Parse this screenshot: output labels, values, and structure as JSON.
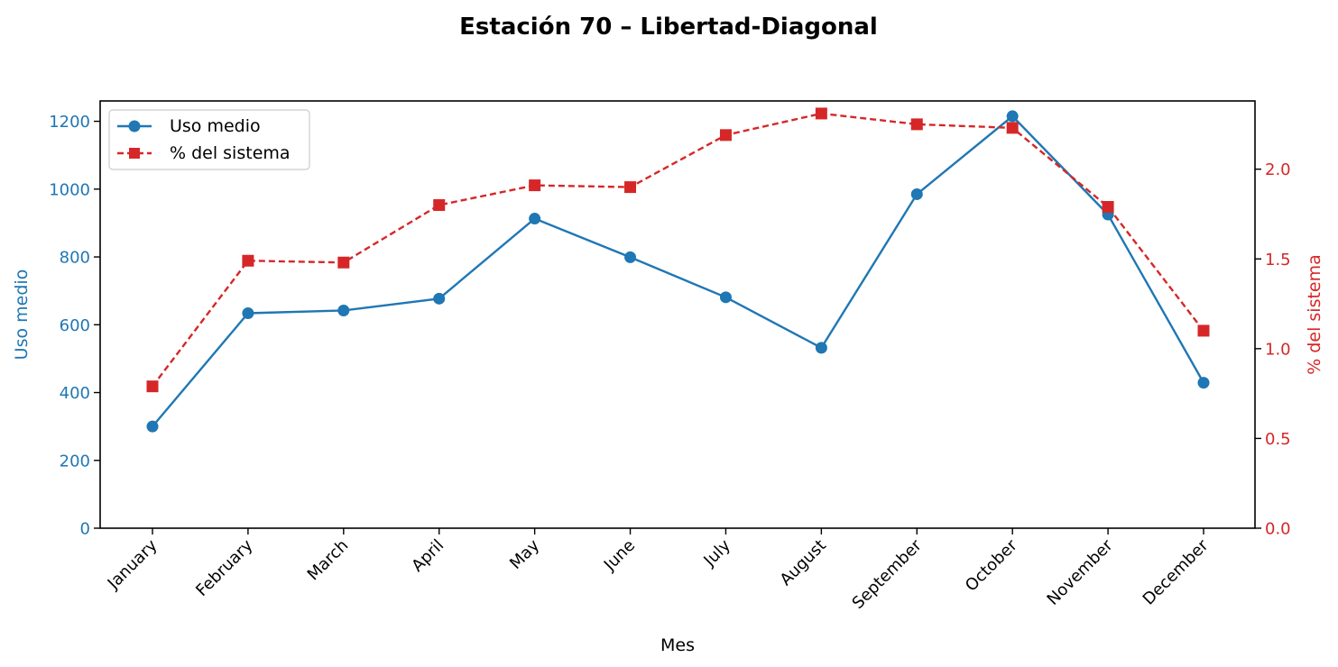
{
  "chart_data": {
    "type": "line",
    "title": "Estación 70 – Libertad-Diagonal",
    "xlabel": "Mes",
    "categories": [
      "January",
      "February",
      "March",
      "April",
      "May",
      "June",
      "July",
      "August",
      "September",
      "October",
      "November",
      "December"
    ],
    "series": [
      {
        "name": "Uso medio",
        "axis": "left",
        "color": "#1f77b4",
        "style": "solid",
        "marker": "circle",
        "values": [
          300,
          634,
          642,
          677,
          913,
          799,
          681,
          532,
          985,
          1215,
          925,
          429
        ]
      },
      {
        "name": "% del sistema",
        "axis": "right",
        "color": "#d62728",
        "style": "dashed",
        "marker": "square",
        "values": [
          0.79,
          1.49,
          1.48,
          1.8,
          1.91,
          1.9,
          2.19,
          2.31,
          2.25,
          2.23,
          1.79,
          1.1
        ]
      }
    ],
    "y_left": {
      "label": "Uso medio",
      "color": "#1f77b4",
      "range": [
        0,
        1260
      ],
      "ticks": [
        0,
        200,
        400,
        600,
        800,
        1000,
        1200
      ],
      "tick_labels": [
        "0",
        "200",
        "400",
        "600",
        "800",
        "1000",
        "1200"
      ]
    },
    "y_right": {
      "label": "% del sistema",
      "color": "#d62728",
      "range": [
        0,
        2.38
      ],
      "ticks": [
        0,
        0.5,
        1.0,
        1.5,
        2.0
      ],
      "tick_labels": [
        "0.0",
        "0.5",
        "1.0",
        "1.5",
        "2.0"
      ]
    },
    "grid": false,
    "legend": "top-left"
  }
}
